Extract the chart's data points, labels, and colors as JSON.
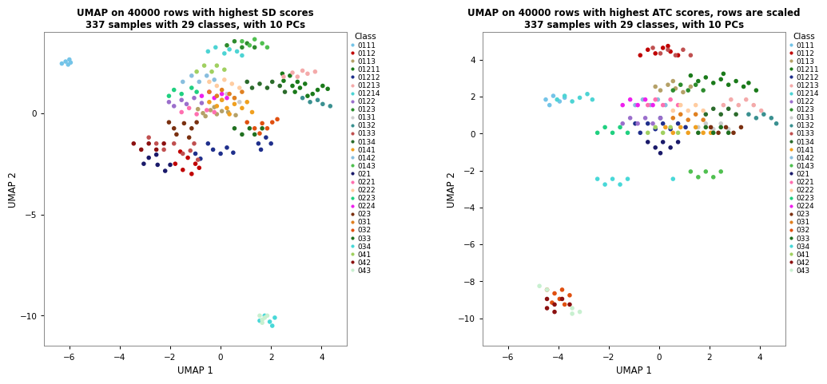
{
  "title1": "UMAP on 40000 rows with highest SD scores\n337 samples with 29 classes, with 10 PCs",
  "title2": "UMAP on 40000 rows with highest ATC scores, rows are scaled\n337 samples with 29 classes, with 10 PCs",
  "xlabel": "UMAP 1",
  "ylabel": "UMAP 2",
  "classes": [
    "0111",
    "0112",
    "0113",
    "01211",
    "01212",
    "01213",
    "01214",
    "0122",
    "0123",
    "0131",
    "0132",
    "0133",
    "0134",
    "0141",
    "0142",
    "0143",
    "021",
    "0221",
    "0222",
    "0223",
    "0224",
    "023",
    "031",
    "032",
    "033",
    "034",
    "041",
    "042",
    "043"
  ],
  "colors": [
    "#74C4E8",
    "#C00000",
    "#B5A168",
    "#1A7A1A",
    "#1F2F8C",
    "#F4AAAA",
    "#4DD4D4",
    "#9B6FCC",
    "#2D8B2D",
    "#CCCCCC",
    "#3A9090",
    "#C05050",
    "#2B6B2B",
    "#F0A020",
    "#88BEDE",
    "#50C050",
    "#1A1A6A",
    "#FF6FB0",
    "#FFCCA0",
    "#20D080",
    "#EE20EE",
    "#7A3010",
    "#E08020",
    "#E05010",
    "#207020",
    "#48D8D8",
    "#A0D060",
    "#8B1010",
    "#C8F0D0"
  ]
}
